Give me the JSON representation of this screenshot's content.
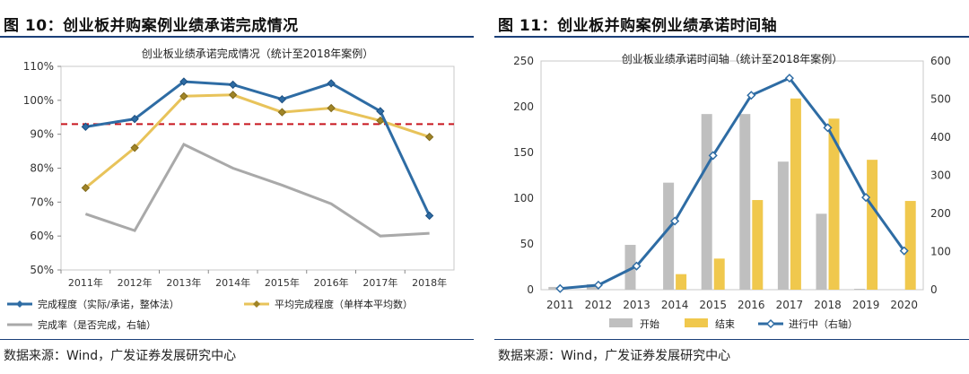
{
  "left": {
    "figure_title": "图 10：创业板并购案例业绩承诺完成情况",
    "source": "数据来源：Wind，广发证券发展研究中心"
  },
  "right": {
    "figure_title": "图 11：创业板并购案例业绩承诺时间轴",
    "source": "数据来源：Wind，广发证券发展研究中心"
  },
  "chart_data": [
    {
      "type": "line",
      "title": "创业板业绩承诺完成情况（统计至2018年案例）",
      "categories": [
        "2011年",
        "2012年",
        "2013年",
        "2014年",
        "2015年",
        "2016年",
        "2017年",
        "2018年"
      ],
      "yticks": [
        "50%",
        "60%",
        "70%",
        "80%",
        "90%",
        "100%",
        "110%"
      ],
      "ylim": [
        50,
        110
      ],
      "reference_line": 93,
      "series": [
        {
          "name": "完成程度（实际/承诺，整体法）",
          "color": "#2e6ca4",
          "values": [
            92.2,
            94.5,
            105.5,
            104.6,
            100.3,
            105.0,
            96.8,
            66.0
          ]
        },
        {
          "name": "平均完成程度（单样本平均数）",
          "color": "#e8c35a",
          "values": [
            74.2,
            86.0,
            101.2,
            101.6,
            96.5,
            97.7,
            94.0,
            89.2
          ]
        },
        {
          "name": "完成率（是否完成，右轴）",
          "color": "#a9a9a9",
          "values": [
            66.5,
            61.6,
            87.0,
            80.0,
            75.0,
            69.5,
            60.0,
            60.8
          ]
        }
      ],
      "legend": "bottom"
    },
    {
      "type": "bar",
      "title": "创业板业绩承诺时间轴（统计至2018年案例）",
      "categories": [
        "2011",
        "2012",
        "2013",
        "2014",
        "2015",
        "2016",
        "2017",
        "2018",
        "2019",
        "2020"
      ],
      "left_yticks": [
        "0",
        "50",
        "100",
        "150",
        "200",
        "250"
      ],
      "right_yticks": [
        "0",
        "100",
        "200",
        "300",
        "400",
        "500",
        "600"
      ],
      "ylim": [
        0,
        250
      ],
      "y2lim": [
        0,
        600
      ],
      "series": [
        {
          "name": "开始",
          "color": "#bfbfbf",
          "axis": "left",
          "values": [
            3,
            6,
            49,
            117,
            192,
            192,
            140,
            83,
            1,
            0
          ]
        },
        {
          "name": "结束",
          "color": "#f0c84d",
          "axis": "left",
          "values": [
            0,
            0,
            0,
            17,
            34,
            98,
            209,
            187,
            142,
            97
          ]
        },
        {
          "name": "进行中（右轴）",
          "color": "#2e6ca4",
          "axis": "right",
          "values": [
            3,
            12,
            62,
            180,
            352,
            510,
            555,
            425,
            242,
            102
          ]
        }
      ],
      "legend": "bottom"
    }
  ]
}
